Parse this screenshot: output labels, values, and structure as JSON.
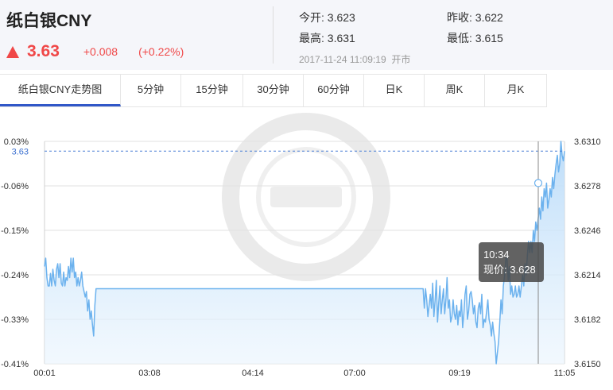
{
  "header": {
    "title": "纸白银CNY",
    "price": "3.63",
    "change": "+0.008",
    "change_pct": "(+0.22%)",
    "open": {
      "label": "今开:",
      "value": "3.623"
    },
    "prev_close": {
      "label": "昨收:",
      "value": "3.622"
    },
    "high": {
      "label": "最高:",
      "value": "3.631"
    },
    "low": {
      "label": "最低:",
      "value": "3.615"
    },
    "timestamp": "2017-11-24 11:09:19",
    "status": "开市"
  },
  "tabs": [
    {
      "label": "纸白银CNY走势图"
    },
    {
      "label": "5分钟"
    },
    {
      "label": "15分钟"
    },
    {
      "label": "30分钟"
    },
    {
      "label": "60分钟"
    },
    {
      "label": "日K"
    },
    {
      "label": "周K"
    },
    {
      "label": "月K"
    }
  ],
  "chart_data": {
    "type": "area",
    "left_ticks": [
      "0.03%",
      "-0.06%",
      "-0.15%",
      "-0.24%",
      "-0.33%",
      "-0.41%"
    ],
    "right_ticks": [
      "3.6310",
      "3.6278",
      "3.6246",
      "3.6214",
      "3.6182",
      "3.6150"
    ],
    "x_ticks": [
      "00:01",
      "03:08",
      "04:14",
      "07:00",
      "09:19",
      "11:05"
    ],
    "ylim": [
      3.615,
      3.631
    ],
    "current_price_label": "3.63",
    "current_price": 3.6303,
    "tooltip": {
      "time": "10:34",
      "label": "现价:",
      "value": "3.628"
    },
    "series_color": "#6cb2ee",
    "fill_color": "#cfe6fb",
    "accent_up": "#f04848",
    "values": [
      3.622,
      3.6226,
      3.6212,
      3.6206,
      3.6206,
      3.6215,
      3.6206,
      3.6218,
      3.621,
      3.6206,
      3.6218,
      3.6222,
      3.6212,
      3.6222,
      3.6208,
      3.6206,
      3.6216,
      3.6206,
      3.6212,
      3.621,
      3.622,
      3.6212,
      3.6226,
      3.6216,
      3.6226,
      3.6212,
      3.6216,
      3.6206,
      3.6212,
      3.6206,
      3.621,
      3.6216,
      3.6206,
      3.6202,
      3.6198,
      3.6202,
      3.6188,
      3.6196,
      3.6182,
      3.6188,
      3.6178,
      3.617,
      3.6192,
      3.6204,
      3.6204,
      3.6204,
      3.6204,
      3.6204,
      3.6204,
      3.6204,
      3.6204,
      3.6204,
      3.6204,
      3.6204,
      3.6204,
      3.6204,
      3.6204,
      3.6204,
      3.6204,
      3.6204,
      3.6204,
      3.6204,
      3.6204,
      3.6204,
      3.6204,
      3.6204,
      3.6204,
      3.6204,
      3.6204,
      3.6204,
      3.6204,
      3.6204,
      3.6204,
      3.6204,
      3.6204,
      3.6204,
      3.6204,
      3.6204,
      3.6204,
      3.6204,
      3.6204,
      3.6204,
      3.6204,
      3.6204,
      3.6204,
      3.6204,
      3.6204,
      3.6204,
      3.6204,
      3.6204,
      3.6204,
      3.6204,
      3.6204,
      3.6204,
      3.6204,
      3.6204,
      3.6204,
      3.6204,
      3.6204,
      3.6204,
      3.6204,
      3.6204,
      3.6204,
      3.6204,
      3.6204,
      3.6204,
      3.6204,
      3.6204,
      3.6204,
      3.6204,
      3.6204,
      3.6204,
      3.6204,
      3.6204,
      3.6204,
      3.6204,
      3.6204,
      3.6204,
      3.6204,
      3.6204,
      3.6204,
      3.6204,
      3.6204,
      3.6204,
      3.6204,
      3.6204,
      3.6204,
      3.6204,
      3.6204,
      3.6204,
      3.6204,
      3.6204,
      3.6204,
      3.6204,
      3.6204,
      3.6204,
      3.6204,
      3.6204,
      3.6204,
      3.6204,
      3.6204,
      3.6204,
      3.6204,
      3.6204,
      3.6204,
      3.6204,
      3.6204,
      3.6204,
      3.6204,
      3.6204,
      3.6204,
      3.6204,
      3.6204,
      3.6204,
      3.6204,
      3.6204,
      3.6204,
      3.6204,
      3.6204,
      3.6204,
      3.6204,
      3.6204,
      3.6204,
      3.6204,
      3.6204,
      3.6204,
      3.6204,
      3.6204,
      3.6204,
      3.6204,
      3.6204,
      3.6204,
      3.6204,
      3.6204,
      3.6204,
      3.6204,
      3.6204,
      3.6204,
      3.6204,
      3.6204,
      3.6204,
      3.6204,
      3.6204,
      3.6204,
      3.6204,
      3.6204,
      3.6204,
      3.6204,
      3.6204,
      3.6204,
      3.6204,
      3.6204,
      3.6204,
      3.6204,
      3.6204,
      3.6204,
      3.6204,
      3.6204,
      3.6204,
      3.6204,
      3.6204,
      3.6204,
      3.6204,
      3.6204,
      3.6204,
      3.6204,
      3.6204,
      3.6204,
      3.6204,
      3.6204,
      3.6204,
      3.6204,
      3.6204,
      3.6204,
      3.6204,
      3.6204,
      3.6204,
      3.6204,
      3.6204,
      3.6204,
      3.6204,
      3.6204,
      3.6204,
      3.6204,
      3.6204,
      3.6204,
      3.6204,
      3.6204,
      3.6204,
      3.6204,
      3.6204,
      3.6204,
      3.6204,
      3.6204,
      3.6204,
      3.6204,
      3.6204,
      3.6204,
      3.6204,
      3.6204,
      3.6204,
      3.6204,
      3.6204,
      3.6204,
      3.6204,
      3.6204,
      3.6204,
      3.6204,
      3.6204,
      3.6204,
      3.6204,
      3.6204,
      3.6204,
      3.6204,
      3.6204,
      3.6204,
      3.6204,
      3.6204,
      3.6204,
      3.6204,
      3.6204,
      3.6204,
      3.6204,
      3.6204,
      3.6204,
      3.6204,
      3.6204,
      3.6204,
      3.6204,
      3.6204,
      3.6204,
      3.6204,
      3.6204,
      3.6204,
      3.6204,
      3.6204,
      3.6204,
      3.6204,
      3.6204,
      3.6204,
      3.6204,
      3.6204,
      3.6204,
      3.6204,
      3.6204,
      3.6204,
      3.6204,
      3.6204,
      3.6204,
      3.6204,
      3.6204,
      3.6204,
      3.6204,
      3.6204,
      3.6204,
      3.6204,
      3.6204,
      3.6204,
      3.6204,
      3.6204,
      3.6204,
      3.6204,
      3.6204,
      3.6204,
      3.6204,
      3.6204,
      3.6204,
      3.6204,
      3.6204,
      3.6204,
      3.6204,
      3.6204,
      3.6204,
      3.6204,
      3.6204,
      3.6204,
      3.6204,
      3.619,
      3.6204,
      3.6196,
      3.6184,
      3.6192,
      3.62,
      3.619,
      3.6208,
      3.6184,
      3.6196,
      3.621,
      3.618,
      3.6194,
      3.6206,
      3.6186,
      3.6196,
      3.6204,
      3.6186,
      3.6196,
      3.6212,
      3.619,
      3.6196,
      3.618,
      3.6184,
      3.6196,
      3.6186,
      3.6182,
      3.6192,
      3.6178,
      3.6188,
      3.6184,
      3.6196,
      3.6176,
      3.6186,
      3.62,
      3.6206,
      3.6182,
      3.6188,
      3.62,
      3.6202,
      3.6196,
      3.6186,
      3.6192,
      3.618,
      3.6176,
      3.619,
      3.6194,
      3.6186,
      3.62,
      3.6176,
      3.6182,
      3.618,
      3.6188,
      3.6196,
      3.6182,
      3.6178,
      3.617,
      3.618,
      3.6172,
      3.6166,
      3.615,
      3.6158,
      3.6166,
      3.618,
      3.6196,
      3.6186,
      3.6206,
      3.6214,
      3.6226,
      3.6226,
      3.621,
      3.622,
      3.62,
      3.6206,
      3.6198,
      3.62,
      3.6206,
      3.6198,
      3.62,
      3.6206,
      3.6198,
      3.6206,
      3.6214,
      3.6206,
      3.6222,
      3.6214,
      3.6228,
      3.6238,
      3.623,
      3.6238,
      3.623,
      3.6246,
      3.6238,
      3.6252,
      3.6246,
      3.6254,
      3.6262,
      3.6254,
      3.627,
      3.626,
      3.6276,
      3.627,
      3.628,
      3.6262,
      3.6268,
      3.6276,
      3.627,
      3.6284,
      3.6276,
      3.6286,
      3.6294,
      3.63,
      3.6288,
      3.6294,
      3.631,
      3.63,
      3.6296,
      3.6303
    ]
  }
}
